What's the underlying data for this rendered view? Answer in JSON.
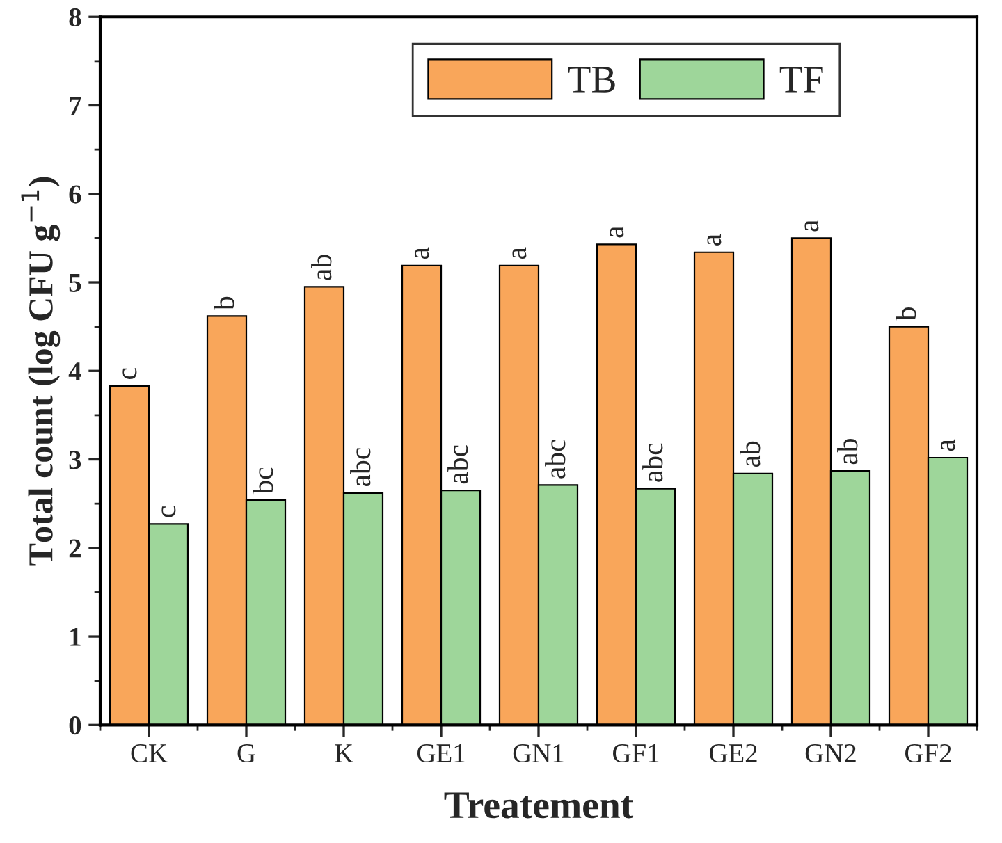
{
  "chart_data": {
    "type": "bar",
    "xlabel": "Treatement",
    "ylabel": "Total count (log CFU g$^{−1}$)",
    "categories": [
      "CK",
      "G",
      "K",
      "GE1",
      "GN1",
      "GF1",
      "GE2",
      "GN2",
      "GF2"
    ],
    "series": [
      {
        "name": "TB",
        "color": "#f9a65a",
        "values": [
          3.83,
          4.62,
          4.95,
          5.19,
          5.19,
          5.43,
          5.34,
          5.5,
          4.5
        ]
      },
      {
        "name": "TF",
        "color": "#9ed69a",
        "values": [
          2.27,
          2.54,
          2.62,
          2.65,
          2.71,
          2.67,
          2.84,
          2.87,
          3.02
        ]
      }
    ],
    "annotations": [
      {
        "text": "c",
        "x": "CK",
        "y": 3.83
      },
      {
        "text": "c",
        "x": "CK",
        "y": 2.27
      },
      {
        "text": "b",
        "x": "G",
        "y": 4.62
      },
      {
        "text": "bc",
        "x": "G",
        "y": 2.54
      },
      {
        "text": "ab",
        "x": "K",
        "y": 4.95
      },
      {
        "text": "abc",
        "x": "K",
        "y": 2.62
      },
      {
        "text": "a",
        "x": "GE1",
        "y": 5.19
      },
      {
        "text": "abc",
        "x": "GE1",
        "y": 2.65
      },
      {
        "text": "a",
        "x": "GN1",
        "y": 5.19
      },
      {
        "text": "abc",
        "x": "GN1",
        "y": 2.71
      },
      {
        "text": "a",
        "x": "GF1",
        "y": 5.43
      },
      {
        "text": "abc",
        "x": "GF1",
        "y": 2.67
      },
      {
        "text": "a",
        "x": "GE2",
        "y": 5.34
      },
      {
        "text": "ab",
        "x": "GE2",
        "y": 2.84
      },
      {
        "text": "a",
        "x": "GN2",
        "y": 5.5
      },
      {
        "text": "ab",
        "x": "GN2",
        "y": 2.87
      },
      {
        "text": "b",
        "x": "GF2",
        "y": 4.5
      },
      {
        "text": "a",
        "x": "GF2",
        "y": 3.02
      }
    ],
    "ylim": [
      0,
      8
    ],
    "yticks": [
      0,
      1,
      2,
      3,
      4,
      5,
      6,
      7,
      8
    ],
    "grid": false,
    "legend": "top"
  }
}
